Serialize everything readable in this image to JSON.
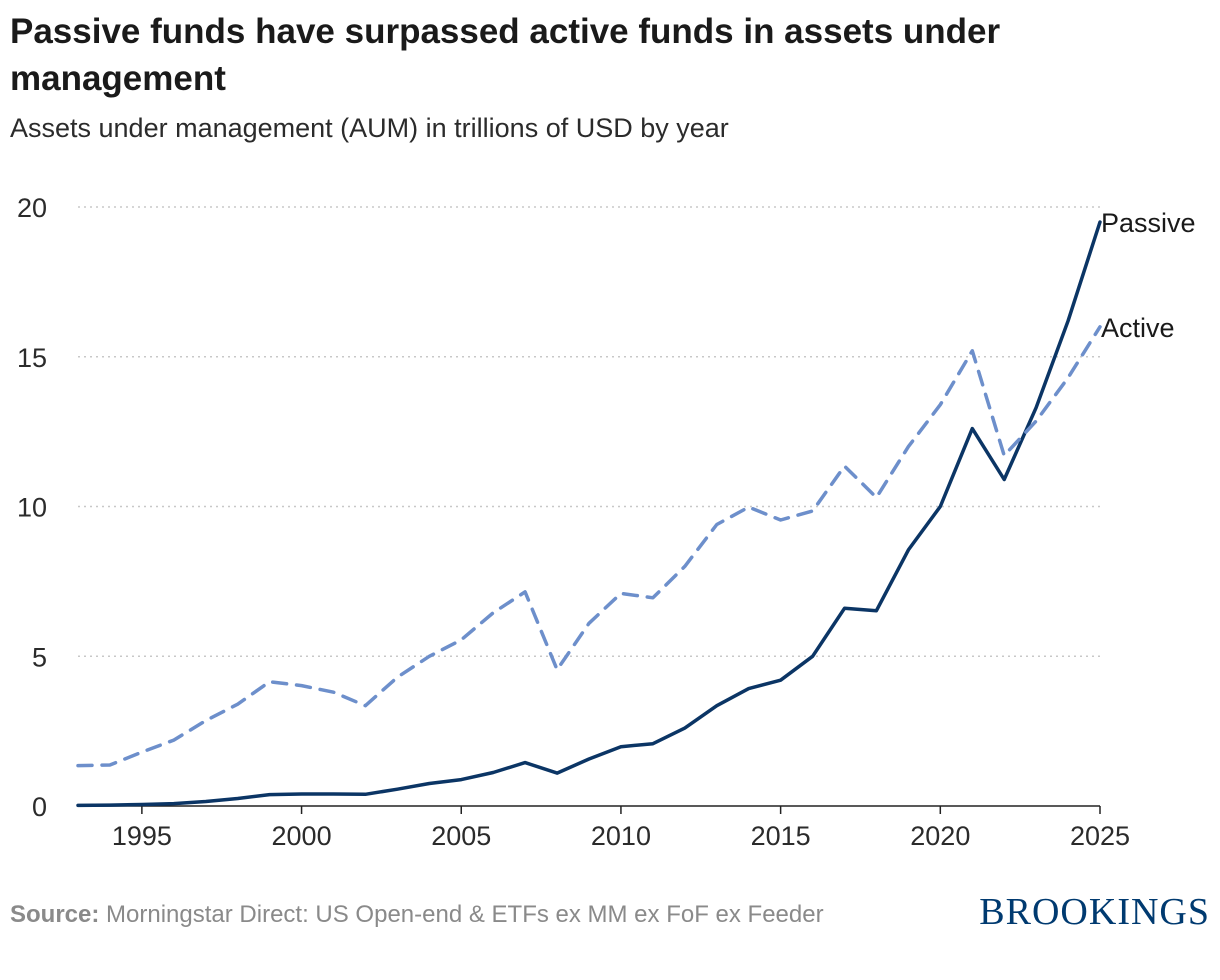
{
  "header": {
    "title": "Passive funds have surpassed active funds in assets under management",
    "subtitle": "Assets under management (AUM) in trillions of USD by year"
  },
  "footer": {
    "source_label": "Source:",
    "source_text": "Morningstar Direct: US Open-end & ETFs ex MM ex FoF ex Feeder",
    "logo_text": "BROOKINGS"
  },
  "colors": {
    "passive": "#0b3565",
    "active": "#6d8fcb",
    "grid": "#c8c8c8",
    "axis": "#222222"
  },
  "chart_data": {
    "type": "line",
    "title": "Passive funds have surpassed active funds in assets under management",
    "subtitle": "Assets under management (AUM) in trillions of USD by year",
    "xlabel": "",
    "ylabel": "",
    "x": [
      1993,
      1994,
      1995,
      1996,
      1997,
      1998,
      1999,
      2000,
      2001,
      2002,
      2003,
      2004,
      2005,
      2006,
      2007,
      2008,
      2009,
      2010,
      2011,
      2012,
      2013,
      2014,
      2015,
      2016,
      2017,
      2018,
      2019,
      2020,
      2021,
      2022,
      2023,
      2024,
      2025
    ],
    "xlim": [
      1993,
      2025
    ],
    "ylim": [
      0,
      20
    ],
    "x_ticks": [
      "1995",
      "2000",
      "2005",
      "2010",
      "2015",
      "2020",
      "2025"
    ],
    "y_ticks": [
      "0",
      "5",
      "10",
      "15",
      "20"
    ],
    "grid": "horizontal dotted",
    "legend": "direct labels at line ends",
    "series": [
      {
        "name": "Passive",
        "style": "solid",
        "values": [
          0.02,
          0.03,
          0.05,
          0.08,
          0.15,
          0.25,
          0.38,
          0.4,
          0.4,
          0.39,
          0.56,
          0.75,
          0.88,
          1.12,
          1.45,
          1.1,
          1.57,
          1.98,
          2.08,
          2.6,
          3.35,
          3.92,
          4.2,
          5.0,
          6.6,
          6.52,
          8.55,
          10.0,
          12.6,
          10.9,
          13.3,
          16.2,
          19.5
        ]
      },
      {
        "name": "Active",
        "style": "dashed",
        "values": [
          1.35,
          1.37,
          1.8,
          2.2,
          2.85,
          3.4,
          4.15,
          4.02,
          3.8,
          3.35,
          4.3,
          5.0,
          5.55,
          6.45,
          7.15,
          4.55,
          6.1,
          7.1,
          6.95,
          8.0,
          9.4,
          9.98,
          9.55,
          9.85,
          11.35,
          10.3,
          12.0,
          13.4,
          15.2,
          11.7,
          12.85,
          14.3,
          16.0
        ]
      }
    ]
  }
}
